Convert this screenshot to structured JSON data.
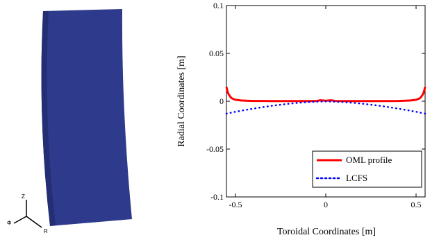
{
  "model_view": {
    "panel_color": "#2e3a8c",
    "panel_shade": "#242e74",
    "triad": {
      "z_label": "Z",
      "phi_label": "Φ",
      "r_label": "R"
    }
  },
  "chart_data": {
    "type": "line",
    "title": "",
    "xlabel": "Toroidal Coordinates [m]",
    "ylabel": "Radial Coordinates [m]",
    "xlim": [
      -0.55,
      0.55
    ],
    "ylim": [
      -0.1,
      0.1
    ],
    "x_ticks": [
      -0.5,
      0,
      0.5
    ],
    "x_tick_labels": [
      "-0.5",
      "0",
      "0.5"
    ],
    "y_ticks": [
      0.1,
      0.05,
      0,
      -0.05,
      -0.1
    ],
    "y_tick_labels": [
      "0.1",
      "0.05",
      "0",
      "-0.05",
      "-0.1"
    ],
    "grid": false,
    "legend_position": "bottom-right",
    "series": [
      {
        "name": "OML profile",
        "style": "solid",
        "color": "#ff0000",
        "x": [
          -0.55,
          -0.545,
          -0.54,
          -0.53,
          -0.52,
          -0.5,
          -0.47,
          -0.44,
          -0.4,
          -0.3,
          -0.2,
          -0.1,
          -0.05,
          -0.03,
          0,
          0.03,
          0.05,
          0.1,
          0.2,
          0.3,
          0.4,
          0.44,
          0.47,
          0.5,
          0.52,
          0.53,
          0.54,
          0.545,
          0.55
        ],
        "y": [
          0.015,
          0.011,
          0.008,
          0.005,
          0.003,
          0.0015,
          0.0008,
          0.0005,
          0.0003,
          0.0002,
          0.0002,
          0.0002,
          0.0003,
          0.001,
          0.0005,
          0.001,
          0.0003,
          0.0002,
          0.0002,
          0.0002,
          0.0003,
          0.0005,
          0.0008,
          0.0015,
          0.003,
          0.005,
          0.008,
          0.011,
          0.015
        ]
      },
      {
        "name": "LCFS",
        "style": "dotted",
        "color": "#0000ff",
        "x": [
          -0.55,
          -0.5,
          -0.45,
          -0.4,
          -0.35,
          -0.3,
          -0.25,
          -0.2,
          -0.15,
          -0.1,
          -0.05,
          0,
          0.05,
          0.1,
          0.15,
          0.2,
          0.25,
          0.3,
          0.35,
          0.4,
          0.45,
          0.5,
          0.55
        ],
        "y": [
          -0.013,
          -0.011,
          -0.0093,
          -0.0077,
          -0.0062,
          -0.0048,
          -0.0036,
          -0.0025,
          -0.0016,
          -0.0009,
          -0.0004,
          -0.0002,
          -0.0004,
          -0.0009,
          -0.0016,
          -0.0025,
          -0.0036,
          -0.0048,
          -0.0062,
          -0.0077,
          -0.0093,
          -0.011,
          -0.013
        ]
      }
    ]
  }
}
